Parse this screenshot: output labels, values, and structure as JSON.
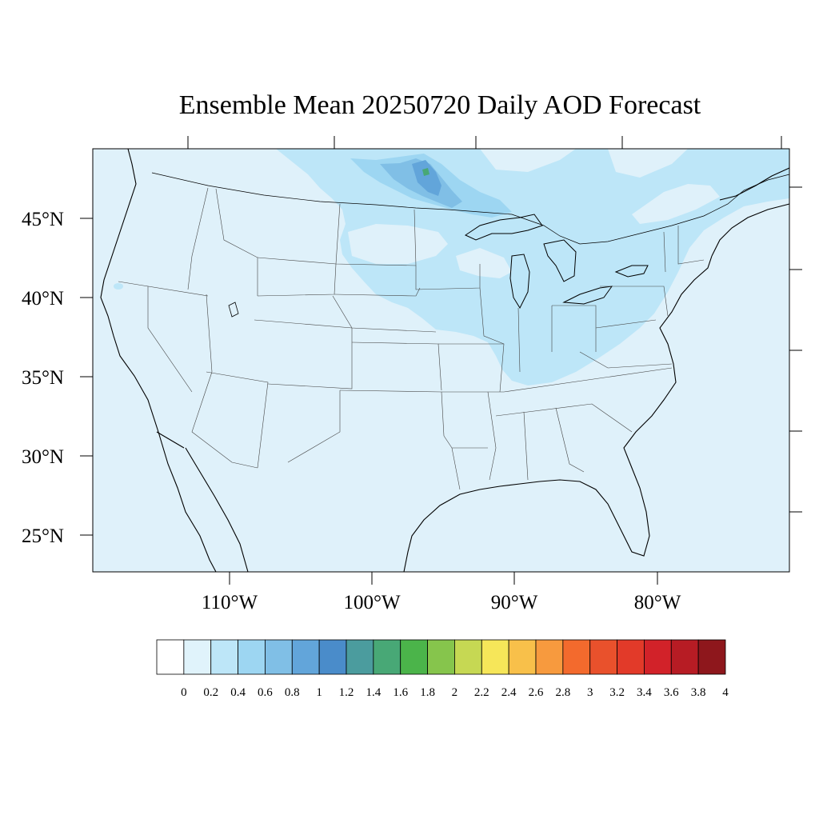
{
  "title": "Ensemble Mean 20250720 Daily AOD Forecast",
  "lat_labels": [
    "45°N",
    "40°N",
    "35°N",
    "30°N",
    "25°N"
  ],
  "lon_labels": [
    "110°W",
    "100°W",
    "90°W",
    "80°W"
  ],
  "colorbar": {
    "labels": [
      "0",
      "0.2",
      "0.4",
      "0.6",
      "0.8",
      "1",
      "1.2",
      "1.4",
      "1.6",
      "1.8",
      "2",
      "2.2",
      "2.4",
      "2.6",
      "2.8",
      "3",
      "3.2",
      "3.4",
      "3.6",
      "3.8",
      "4"
    ],
    "colors": [
      "#ffffff",
      "#e0f3fb",
      "#bde6f8",
      "#9dd6f2",
      "#80bfe6",
      "#62a5da",
      "#4a8cca",
      "#4b9c9e",
      "#48a876",
      "#4bb44a",
      "#86c54c",
      "#c6d853",
      "#f6e659",
      "#f8c04a",
      "#f79a3e",
      "#f36a2d",
      "#e9512c",
      "#e23a29",
      "#d22229",
      "#b71c24",
      "#8e171c"
    ]
  },
  "map_colors": {
    "ocean": "#dff1fa",
    "level_02": "#bde6f8",
    "level_04": "#9dd6f2",
    "level_06": "#80bfe6",
    "level_08": "#62a5da",
    "level_14": "#48a876"
  }
}
